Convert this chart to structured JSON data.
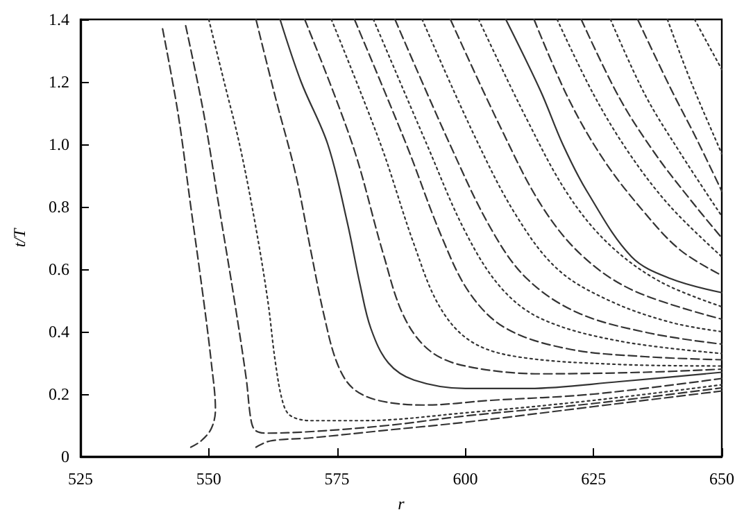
{
  "chart_data": {
    "type": "line",
    "xlabel": "r",
    "ylabel": "t/T",
    "xlim": [
      525,
      650
    ],
    "xticks": [
      525,
      550,
      575,
      600,
      625,
      650
    ],
    "ylim": [
      0,
      1.4
    ],
    "yticks": [
      {
        "value": 0,
        "label": "0"
      },
      {
        "value": 0.2,
        "label": "0.2"
      },
      {
        "value": 0.4,
        "label": "0.4"
      },
      {
        "value": 0.6,
        "label": "0.6"
      },
      {
        "value": 0.8,
        "label": "0.8"
      },
      {
        "value": 1,
        "label": "1.0"
      },
      {
        "value": 1.2,
        "label": "1.2"
      },
      {
        "value": 1.4,
        "label": "1.4"
      }
    ],
    "grid": false,
    "marker": "none",
    "series": [
      {
        "color": "#333333",
        "line_style": "dashed",
        "x": [
          541,
          544,
          546.5,
          549,
          550.5,
          551.3,
          550.5,
          548.5,
          546.5
        ],
        "values": [
          1.37,
          1.1,
          0.8,
          0.5,
          0.3,
          0.15,
          0.09,
          0.05,
          0.03
        ]
      },
      {
        "color": "#333333",
        "line_style": "dashed",
        "x": [
          545.5,
          549,
          552,
          555,
          557.3,
          558.2,
          559,
          561,
          570,
          585,
          600,
          625,
          650
        ],
        "values": [
          1.38,
          1.1,
          0.8,
          0.5,
          0.25,
          0.12,
          0.085,
          0.075,
          0.08,
          0.1,
          0.13,
          0.17,
          0.22
        ]
      },
      {
        "color": "#333333",
        "line_style": "dashed",
        "x": [
          559.2,
          562,
          570,
          585,
          600,
          625,
          650
        ],
        "values": [
          0.03,
          0.05,
          0.06,
          0.085,
          0.11,
          0.16,
          0.21
        ]
      },
      {
        "color": "#333333",
        "line_style": "dotted",
        "x": [
          550,
          553,
          556,
          559,
          561.5,
          563,
          564.5,
          566,
          570,
          580,
          600,
          625,
          650
        ],
        "values": [
          1.4,
          1.2,
          1.0,
          0.75,
          0.5,
          0.3,
          0.17,
          0.13,
          0.115,
          0.115,
          0.14,
          0.18,
          0.23
        ]
      },
      {
        "color": "#333333",
        "line_style": "dashed",
        "x": [
          559.2,
          563,
          567,
          570,
          572.5,
          575,
          578,
          583,
          592,
          605,
          625,
          650
        ],
        "values": [
          1.4,
          1.15,
          0.9,
          0.65,
          0.45,
          0.3,
          0.22,
          0.18,
          0.165,
          0.18,
          0.2,
          0.25
        ]
      },
      {
        "color": "#333333",
        "line_style": "solid",
        "x": [
          563.9,
          568,
          573.2,
          577,
          579.5,
          581.6,
          585,
          590,
          600,
          612,
          630,
          650
        ],
        "values": [
          1.4,
          1.2,
          1.0,
          0.75,
          0.55,
          0.41,
          0.3,
          0.245,
          0.218,
          0.218,
          0.24,
          0.27
        ]
      },
      {
        "color": "#333333",
        "line_style": "dashed",
        "x": [
          568.7,
          578,
          584,
          588,
          593,
          600,
          615,
          635,
          650
        ],
        "values": [
          1.4,
          1.0,
          0.65,
          0.45,
          0.34,
          0.29,
          0.265,
          0.27,
          0.28
        ]
      },
      {
        "color": "#333333",
        "line_style": "dotted",
        "x": [
          573.9,
          583.5,
          590,
          595,
          601,
          610,
          630,
          650
        ],
        "values": [
          1.4,
          1.0,
          0.68,
          0.48,
          0.37,
          0.32,
          0.295,
          0.29
        ]
      },
      {
        "color": "#333333",
        "line_style": "dashed",
        "x": [
          578.4,
          588.5,
          595.5,
          601,
          608,
          620,
          635,
          650
        ],
        "values": [
          1.4,
          1.0,
          0.7,
          0.52,
          0.41,
          0.345,
          0.32,
          0.31
        ]
      },
      {
        "color": "#333333",
        "line_style": "dotted",
        "x": [
          582.1,
          592.5,
          600,
          607,
          615,
          630,
          650
        ],
        "values": [
          1.4,
          1.0,
          0.72,
          0.54,
          0.44,
          0.37,
          0.33
        ]
      },
      {
        "color": "#333333",
        "line_style": "dashed",
        "x": [
          586.3,
          597,
          605,
          612,
          622,
          636,
          650
        ],
        "values": [
          1.4,
          1.0,
          0.73,
          0.57,
          0.46,
          0.395,
          0.36
        ]
      },
      {
        "color": "#333333",
        "line_style": "dotted",
        "x": [
          591.6,
          602,
          610,
          618,
          628,
          640,
          650
        ],
        "values": [
          1.4,
          1.02,
          0.77,
          0.6,
          0.5,
          0.43,
          0.4
        ]
      },
      {
        "color": "#333333",
        "line_style": "dashed",
        "x": [
          597.1,
          607,
          615,
          623,
          633,
          650
        ],
        "values": [
          1.4,
          1.05,
          0.8,
          0.64,
          0.53,
          0.44
        ]
      },
      {
        "color": "#333333",
        "line_style": "dotted",
        "x": [
          602.6,
          612,
          620,
          628,
          638,
          650
        ],
        "values": [
          1.4,
          1.08,
          0.84,
          0.68,
          0.56,
          0.48
        ]
      },
      {
        "color": "#333333",
        "line_style": "solid",
        "x": [
          607.9,
          614.7,
          619,
          623.7,
          632.4,
          640,
          650
        ],
        "values": [
          1.4,
          1.17,
          1.0,
          0.85,
          0.64,
          0.57,
          0.525
        ]
      },
      {
        "color": "#333333",
        "line_style": "dashed",
        "x": [
          613.4,
          620,
          627,
          635,
          642,
          650
        ],
        "values": [
          1.4,
          1.15,
          0.95,
          0.78,
          0.66,
          0.58
        ]
      },
      {
        "color": "#333333",
        "line_style": "dotted",
        "x": [
          617.9,
          625,
          632,
          640,
          650
        ],
        "values": [
          1.4,
          1.16,
          0.97,
          0.8,
          0.64
        ]
      },
      {
        "color": "#333333",
        "line_style": "dashed",
        "x": [
          622.6,
          630,
          637,
          644,
          650
        ],
        "values": [
          1.4,
          1.15,
          0.97,
          0.82,
          0.7
        ]
      },
      {
        "color": "#333333",
        "line_style": "dotted",
        "x": [
          628.3,
          635,
          642,
          650
        ],
        "values": [
          1.4,
          1.16,
          0.97,
          0.77
        ]
      },
      {
        "color": "#333333",
        "line_style": "dashed",
        "x": [
          633.6,
          640,
          645,
          650
        ],
        "values": [
          1.4,
          1.18,
          1.02,
          0.85
        ]
      },
      {
        "color": "#333333",
        "line_style": "dotted",
        "x": [
          639.4,
          644,
          650
        ],
        "values": [
          1.4,
          1.2,
          0.97
        ]
      },
      {
        "color": "#333333",
        "line_style": "dotted",
        "x": [
          644.7,
          647,
          650
        ],
        "values": [
          1.4,
          1.33,
          1.24
        ]
      }
    ]
  }
}
